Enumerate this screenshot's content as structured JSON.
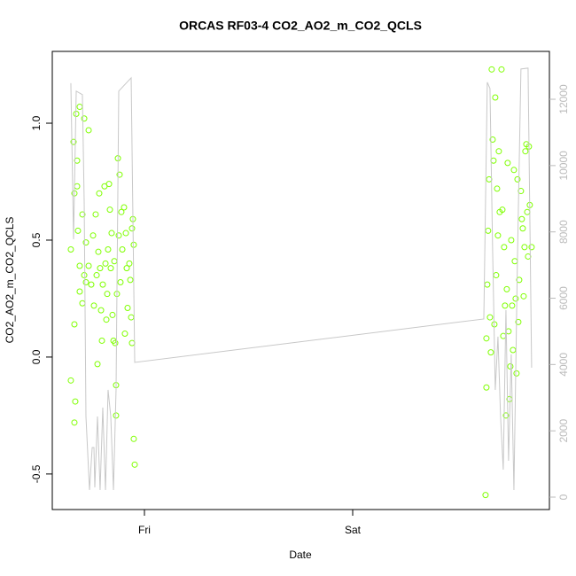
{
  "chart_data": {
    "type": "scatter",
    "title": "ORCAS RF03-4 CO2_AO2_m_CO2_QCLS",
    "xlabel": "Date",
    "ylabel": "CO2_AO2_m_CO2_QCLS",
    "xlim": [
      -10.62,
      46.67
    ],
    "xticks": [
      {
        "value": 0,
        "label": "Fri"
      },
      {
        "value": 24,
        "label": "Sat"
      }
    ],
    "ylim": [
      -0.652,
      1.307
    ],
    "yticks": [
      -0.5,
      {
        "value": 0,
        "label": "0.0"
      },
      0.5,
      {
        "value": 1,
        "label": "1.0"
      }
    ],
    "y2lim": [
      -374,
      13444
    ],
    "y2ticks": [
      0,
      2000,
      4000,
      6000,
      8000,
      10000,
      12000
    ],
    "series": [
      {
        "type": "scatter",
        "color": "#7fff00",
        "x": [
          -8.48,
          -8.48,
          -8.17,
          -8.07,
          -8.07,
          -8.07,
          -7.97,
          -7.86,
          -7.76,
          -7.76,
          -7.66,
          -7.46,
          -7.46,
          -7.46,
          -7.15,
          -7.15,
          -6.94,
          -6.94,
          -6.74,
          -6.74,
          -6.43,
          -6.43,
          -6.13,
          -5.92,
          -5.82,
          -5.62,
          -5.51,
          -5.41,
          -5.31,
          -5.21,
          -5.11,
          -5.0,
          -4.9,
          -4.8,
          -4.6,
          -4.49,
          -4.39,
          -4.29,
          -4.19,
          -4.08,
          -3.98,
          -3.88,
          -3.78,
          -3.68,
          -3.57,
          -3.47,
          -3.37,
          -3.27,
          -3.27,
          -3.17,
          -3.06,
          -2.96,
          -2.86,
          -2.76,
          -2.66,
          -2.55,
          -2.35,
          -2.25,
          -2.14,
          -2.04,
          -1.94,
          -1.74,
          -1.63,
          -1.53,
          -1.43,
          -1.33,
          -1.23,
          -1.23,
          -1.12,
          -1.43,
          39.31,
          39.41,
          39.41,
          39.51,
          39.61,
          39.72,
          39.82,
          39.92,
          40.02,
          40.13,
          40.23,
          40.33,
          40.43,
          40.53,
          40.64,
          40.74,
          40.84,
          40.94,
          41.15,
          41.25,
          41.35,
          41.45,
          41.55,
          41.66,
          41.76,
          41.86,
          41.96,
          42.07,
          42.17,
          42.27,
          42.37,
          42.47,
          42.58,
          42.68,
          42.78,
          42.88,
          42.99,
          43.09,
          43.19,
          43.39,
          43.49,
          43.6,
          43.7,
          43.8,
          43.9,
          44.01,
          44.11,
          44.21,
          44.31,
          44.41,
          44.62
        ],
        "values": [
          0.46,
          -0.1,
          0.92,
          0.7,
          0.14,
          -0.28,
          -0.19,
          1.04,
          0.84,
          0.73,
          0.54,
          1.07,
          0.39,
          0.28,
          0.61,
          0.23,
          1.02,
          0.35,
          0.49,
          0.32,
          0.97,
          0.39,
          0.31,
          0.52,
          0.22,
          0.61,
          0.35,
          -0.03,
          0.45,
          0.7,
          0.38,
          0.2,
          0.07,
          0.31,
          0.73,
          0.4,
          0.16,
          0.27,
          0.46,
          0.74,
          0.63,
          0.38,
          0.53,
          0.18,
          0.07,
          0.41,
          0.06,
          -0.25,
          -0.12,
          0.27,
          0.85,
          0.52,
          0.78,
          0.32,
          0.62,
          0.46,
          0.64,
          0.1,
          0.53,
          0.38,
          0.21,
          0.4,
          0.33,
          0.17,
          0.55,
          0.59,
          0.48,
          -0.35,
          -0.46,
          0.06,
          -0.59,
          0.08,
          -0.13,
          0.31,
          0.54,
          0.76,
          0.17,
          0.02,
          1.23,
          0.93,
          0.84,
          0.14,
          1.11,
          0.35,
          0.72,
          0.52,
          0.88,
          0.62,
          1.23,
          0.63,
          0.09,
          0.47,
          0.22,
          -0.25,
          0.29,
          0.83,
          0.11,
          -0.18,
          -0.04,
          0.5,
          0.22,
          0.03,
          0.8,
          0.41,
          0.25,
          -0.07,
          0.76,
          0.15,
          0.33,
          0.71,
          0.59,
          0.55,
          0.26,
          0.47,
          0.88,
          0.91,
          0.62,
          0.43,
          0.9,
          0.65,
          0.47
        ]
      },
      {
        "type": "line",
        "axis": "y2",
        "color": "#c8c8c8",
        "x": [
          -8.48,
          -8.17,
          -7.86,
          -7.15,
          -6.94,
          -6.74,
          -6.33,
          -6.02,
          -5.82,
          -5.72,
          -5.41,
          -5.11,
          -4.8,
          -4.49,
          -4.19,
          -3.88,
          -3.57,
          -3.27,
          -2.96,
          -1.53,
          -1.12,
          39.11,
          39.51,
          39.82,
          40.13,
          40.43,
          40.74,
          41.04,
          41.35,
          41.66,
          41.96,
          42.27,
          42.58,
          42.99,
          43.39,
          44.21,
          44.62
        ],
        "values": [
          12487,
          7781,
          12246,
          12139,
          8850,
          2433,
          214,
          1497,
          1497,
          294,
          2433,
          214,
          2701,
          214,
          3235,
          2433,
          214,
          3235,
          12246,
          12647,
          4064,
          5374,
          12513,
          12326,
          7380,
          3235,
          4840,
          2433,
          829,
          5642,
          1096,
          4305,
          214,
          7246,
          12914,
          12941,
          3904
        ]
      }
    ]
  }
}
